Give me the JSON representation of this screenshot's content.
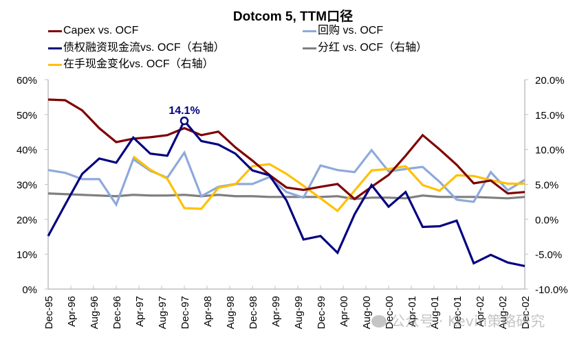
{
  "chart_data": {
    "type": "line",
    "title": "Dotcom 5, TTM口径",
    "xlabel": "",
    "ylabel_left": "",
    "ylabel_right": "",
    "legend_position": "top",
    "grid": false,
    "x_tick_labels": [
      "Dec-95",
      "Apr-96",
      "Aug-96",
      "Dec-96",
      "Apr-97",
      "Aug-97",
      "Dec-97",
      "Apr-98",
      "Aug-98",
      "Dec-98",
      "Apr-99",
      "Aug-99",
      "Dec-99",
      "Apr-00",
      "Aug-00",
      "Dec-00",
      "Apr-01",
      "Aug-01",
      "Dec-01",
      "Apr-02",
      "Aug-02",
      "Dec-02"
    ],
    "x_range_months": [
      0,
      84
    ],
    "x_step_months": 3,
    "y_left": {
      "ylim": [
        0,
        60
      ],
      "ticks": [
        0,
        10,
        20,
        30,
        40,
        50,
        60
      ],
      "tick_labels": [
        "0%",
        "10%",
        "20%",
        "30%",
        "40%",
        "50%",
        "60%"
      ]
    },
    "y_right": {
      "ylim": [
        -10,
        20
      ],
      "ticks": [
        -10,
        -5,
        0,
        5,
        10,
        15,
        20
      ],
      "tick_labels": [
        "-10.0%",
        "-5.0%",
        "0.0%",
        "5.0%",
        "10.0%",
        "15.0%",
        "20.0%"
      ]
    },
    "series": [
      {
        "name": "Capex vs. OCF",
        "axis": "left",
        "color": "#7F0000",
        "values": [
          54.3,
          54.1,
          51.2,
          46.1,
          42.1,
          43.1,
          43.5,
          44.1,
          46.1,
          44.1,
          45.1,
          40.6,
          36.8,
          32.7,
          29.1,
          28.4,
          29.3,
          30.1,
          25.8,
          29.3,
          32.7,
          38.2,
          44.1,
          40.0,
          35.6,
          30.3,
          31.1,
          27.4,
          27.8
        ]
      },
      {
        "name": "回购 vs. OCF",
        "axis": "left",
        "color": "#8EA9DB",
        "values": [
          34.1,
          33.3,
          31.5,
          31.5,
          24.2,
          37.2,
          33.9,
          31.9,
          39.1,
          26.6,
          29.3,
          30.1,
          30.1,
          32.1,
          27.8,
          26.2,
          35.4,
          34.1,
          33.5,
          39.8,
          33.7,
          34.4,
          35.0,
          30.7,
          25.6,
          25.0,
          33.5,
          28.3,
          31.3
        ]
      },
      {
        "name": "债权融资现金流vs. OCF（右轴）",
        "axis": "right",
        "color": "#000080",
        "values": [
          -2.4,
          2.1,
          6.5,
          8.7,
          8.1,
          11.7,
          9.4,
          9.1,
          14.1,
          11.2,
          10.7,
          9.4,
          7.0,
          6.3,
          2.7,
          -2.9,
          -2.4,
          -4.8,
          0.7,
          4.9,
          1.8,
          3.9,
          -1.1,
          -1.0,
          -0.2,
          -6.3,
          -5.1,
          -6.2,
          -6.7
        ]
      },
      {
        "name": "分红 vs. OCF（右轴）",
        "axis": "right",
        "color": "#7F7F7F",
        "values": [
          3.7,
          3.6,
          3.5,
          3.4,
          3.3,
          3.5,
          3.4,
          3.4,
          3.5,
          3.3,
          3.5,
          3.3,
          3.3,
          3.2,
          3.2,
          3.2,
          3.2,
          3.3,
          2.9,
          3.1,
          3.1,
          3.0,
          3.4,
          3.2,
          3.2,
          3.2,
          3.1,
          3.0,
          3.2
        ]
      },
      {
        "name": "在手现金变化vs. OCF（右轴）",
        "axis": "right",
        "color": "#FFC000",
        "values": [
          null,
          null,
          null,
          null,
          null,
          9.0,
          7.1,
          5.8,
          1.6,
          1.5,
          4.5,
          5.0,
          7.6,
          7.9,
          6.5,
          4.8,
          3.0,
          1.2,
          4.1,
          7.0,
          7.2,
          7.6,
          4.9,
          4.1,
          6.3,
          6.2,
          5.6,
          5.1,
          5.1
        ]
      }
    ],
    "annotations": [
      {
        "series": "债权融资现金流vs. OCF（右轴）",
        "x_label": "Dec-97",
        "value": 14.1,
        "text": "14.1%"
      }
    ],
    "watermark": "公众号 · Kevin策略研究"
  }
}
